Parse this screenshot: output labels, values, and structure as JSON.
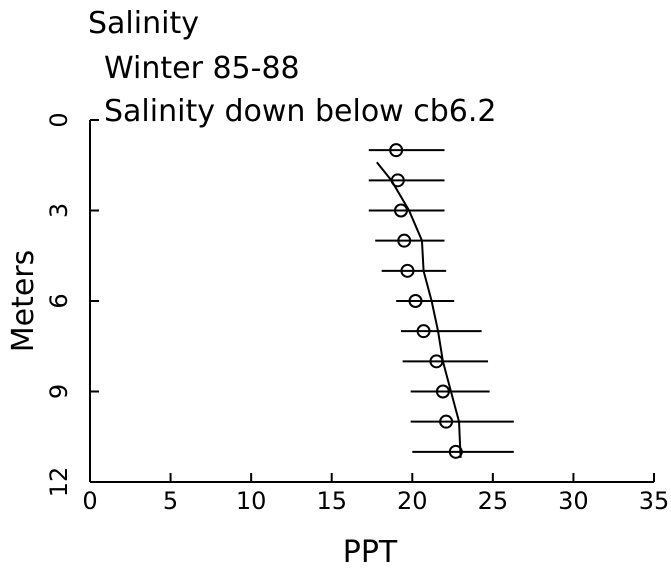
{
  "chart_data": {
    "type": "scatter",
    "title": "Salinity",
    "subtitle_lines": [
      "Winter 85-88",
      "Salinity down below cb6.2"
    ],
    "xlabel": "PPT",
    "ylabel": "Meters",
    "xlim": [
      0,
      35
    ],
    "ylim": [
      0,
      12
    ],
    "y_inverted": true,
    "x_ticks": [
      0,
      5,
      10,
      15,
      20,
      25,
      30,
      35
    ],
    "y_ticks": [
      0,
      3,
      6,
      9,
      12
    ],
    "x_tick_labels": [
      "0",
      "5",
      "10",
      "15",
      "20",
      "25",
      "30",
      "35"
    ],
    "y_tick_labels": [
      "0",
      "3",
      "6",
      "9",
      "12"
    ],
    "grid": false,
    "legend": "none",
    "points": [
      {
        "depth": 1,
        "salinity": 19.0,
        "x_low": 17.3,
        "x_high": 22.0
      },
      {
        "depth": 2,
        "salinity": 19.1,
        "x_low": 17.3,
        "x_high": 22.0
      },
      {
        "depth": 3,
        "salinity": 19.3,
        "x_low": 17.3,
        "x_high": 22.0
      },
      {
        "depth": 4,
        "salinity": 19.5,
        "x_low": 17.7,
        "x_high": 22.0
      },
      {
        "depth": 5,
        "salinity": 19.7,
        "x_low": 18.1,
        "x_high": 22.1
      },
      {
        "depth": 6,
        "salinity": 20.2,
        "x_low": 19.0,
        "x_high": 22.6
      },
      {
        "depth": 7,
        "salinity": 20.7,
        "x_low": 19.3,
        "x_high": 24.3
      },
      {
        "depth": 8,
        "salinity": 21.5,
        "x_low": 19.4,
        "x_high": 24.7
      },
      {
        "depth": 9,
        "salinity": 21.9,
        "x_low": 19.9,
        "x_high": 24.8
      },
      {
        "depth": 10,
        "salinity": 22.1,
        "x_low": 19.9,
        "x_high": 26.3
      },
      {
        "depth": 11,
        "salinity": 22.7,
        "x_low": 20.0,
        "x_high": 26.3
      }
    ],
    "line": {
      "x": [
        17.8,
        18.7,
        19.8,
        20.6,
        20.7,
        21.2,
        21.6,
        21.9,
        22.4,
        22.9,
        23.0
      ],
      "y": [
        1.4,
        2.0,
        3.0,
        4.0,
        5.0,
        6.0,
        7.0,
        8.0,
        9.0,
        10.0,
        11.2
      ]
    }
  }
}
